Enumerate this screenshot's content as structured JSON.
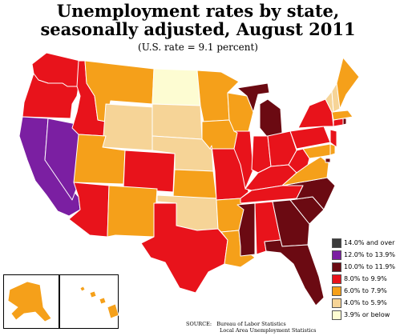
{
  "header": {
    "title_line1": "Unemployment rates by state,",
    "title_line2": "seasonally adjusted, August 2011",
    "subtitle": "(U.S. rate = 9.1 percent)"
  },
  "legend": {
    "items": [
      {
        "label": "14.0% and over",
        "color": "#3b3b3b"
      },
      {
        "label": "12.0% to 13.9%",
        "color": "#7b1fa2"
      },
      {
        "label": "10.0% to 11.9%",
        "color": "#6b0a12"
      },
      {
        "label": "8.0% to 9.9%",
        "color": "#e8131b"
      },
      {
        "label": "6.0% to 7.9%",
        "color": "#f5a01a"
      },
      {
        "label": "4.0% to 5.9%",
        "color": "#f6d497"
      },
      {
        "label": "3.9% or below",
        "color": "#fdfcd2"
      }
    ]
  },
  "source": {
    "label": "SOURCE:",
    "line1": "Bureau of Labor Statistics",
    "line2": "Local Area Unemployment Statistics"
  },
  "map_data": {
    "states": [
      {
        "id": "WA",
        "category": "8.0% to 9.9%"
      },
      {
        "id": "OR",
        "category": "8.0% to 9.9%"
      },
      {
        "id": "CA",
        "category": "12.0% to 13.9%"
      },
      {
        "id": "NV",
        "category": "12.0% to 13.9%"
      },
      {
        "id": "ID",
        "category": "8.0% to 9.9%"
      },
      {
        "id": "MT",
        "category": "6.0% to 7.9%"
      },
      {
        "id": "WY",
        "category": "4.0% to 5.9%"
      },
      {
        "id": "UT",
        "category": "6.0% to 7.9%"
      },
      {
        "id": "AZ",
        "category": "8.0% to 9.9%"
      },
      {
        "id": "CO",
        "category": "8.0% to 9.9%"
      },
      {
        "id": "NM",
        "category": "6.0% to 7.9%"
      },
      {
        "id": "ND",
        "category": "3.9% or below"
      },
      {
        "id": "SD",
        "category": "4.0% to 5.9%"
      },
      {
        "id": "NE",
        "category": "4.0% to 5.9%"
      },
      {
        "id": "KS",
        "category": "6.0% to 7.9%"
      },
      {
        "id": "OK",
        "category": "4.0% to 5.9%"
      },
      {
        "id": "TX",
        "category": "8.0% to 9.9%"
      },
      {
        "id": "MN",
        "category": "6.0% to 7.9%"
      },
      {
        "id": "IA",
        "category": "6.0% to 7.9%"
      },
      {
        "id": "MO",
        "category": "8.0% to 9.9%"
      },
      {
        "id": "AR",
        "category": "6.0% to 7.9%"
      },
      {
        "id": "LA",
        "category": "6.0% to 7.9%"
      },
      {
        "id": "WI",
        "category": "6.0% to 7.9%"
      },
      {
        "id": "IL",
        "category": "8.0% to 9.9%"
      },
      {
        "id": "MI",
        "category": "10.0% to 11.9%"
      },
      {
        "id": "IN",
        "category": "8.0% to 9.9%"
      },
      {
        "id": "OH",
        "category": "8.0% to 9.9%"
      },
      {
        "id": "KY",
        "category": "8.0% to 9.9%"
      },
      {
        "id": "TN",
        "category": "8.0% to 9.9%"
      },
      {
        "id": "MS",
        "category": "10.0% to 11.9%"
      },
      {
        "id": "AL",
        "category": "8.0% to 9.9%"
      },
      {
        "id": "GA",
        "category": "10.0% to 11.9%"
      },
      {
        "id": "FL",
        "category": "10.0% to 11.9%"
      },
      {
        "id": "SC",
        "category": "10.0% to 11.9%"
      },
      {
        "id": "NC",
        "category": "10.0% to 11.9%"
      },
      {
        "id": "VA",
        "category": "6.0% to 7.9%"
      },
      {
        "id": "WV",
        "category": "8.0% to 9.9%"
      },
      {
        "id": "PA",
        "category": "8.0% to 9.9%"
      },
      {
        "id": "NY",
        "category": "8.0% to 9.9%"
      },
      {
        "id": "MD",
        "category": "6.0% to 7.9%"
      },
      {
        "id": "DE",
        "category": "6.0% to 7.9%"
      },
      {
        "id": "NJ",
        "category": "8.0% to 9.9%"
      },
      {
        "id": "CT",
        "category": "8.0% to 9.9%"
      },
      {
        "id": "RI",
        "category": "10.0% to 11.9%"
      },
      {
        "id": "MA",
        "category": "6.0% to 7.9%"
      },
      {
        "id": "VT",
        "category": "4.0% to 5.9%"
      },
      {
        "id": "NH",
        "category": "4.0% to 5.9%"
      },
      {
        "id": "ME",
        "category": "6.0% to 7.9%"
      },
      {
        "id": "DC",
        "category": "10.0% to 11.9%"
      },
      {
        "id": "AK",
        "category": "6.0% to 7.9%"
      },
      {
        "id": "HI",
        "category": "6.0% to 7.9%"
      }
    ]
  }
}
